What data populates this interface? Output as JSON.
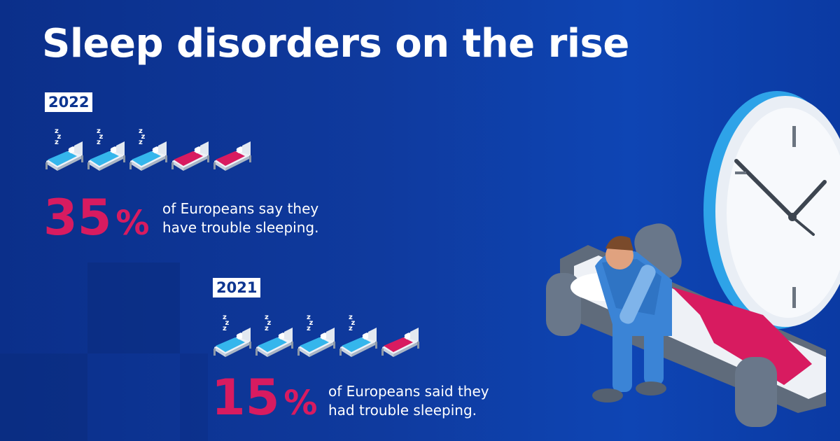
{
  "title": "Sleep disorders on the rise",
  "stats": [
    {
      "year": "2022",
      "value": "35",
      "unit": "%",
      "line1": "of Europeans say they",
      "line2": "have trouble sleeping.",
      "beds": [
        "sleeping",
        "sleeping",
        "sleeping",
        "awake",
        "awake"
      ]
    },
    {
      "year": "2021",
      "value": "15",
      "unit": "%",
      "line1": "of Europeans said they",
      "line2": "had trouble sleeping.",
      "beds": [
        "sleeping",
        "sleeping",
        "sleeping",
        "sleeping",
        "awake"
      ]
    }
  ],
  "icons": {
    "sleeping_bed": "bed-sleeping-icon",
    "empty_bed": "bed-empty-icon"
  },
  "colors": {
    "background": "#0f3a9e",
    "accent": "#d81b60",
    "bed_blue": "#35b6ec",
    "text": "#ffffff"
  }
}
